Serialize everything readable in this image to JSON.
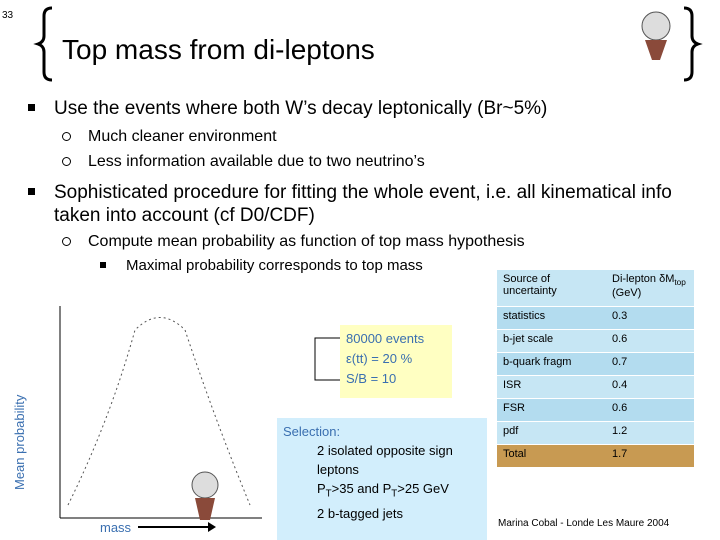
{
  "page_number": "33",
  "title": "Top mass from di-leptons",
  "bullets": [
    {
      "text": "Use the events where both W’s decay leptonically (Br~5%)",
      "sub": [
        "Much cleaner environment",
        "Less information available due to two neutrino’s"
      ]
    },
    {
      "text": "Sophisticated procedure for fitting the whole event, i.e. all kinematical info taken into account (cf D0/CDF)",
      "sub": [
        "Compute mean probability as function of top mass hypothesis"
      ],
      "subsub": [
        "Maximal probability corresponds to top mass"
      ]
    }
  ],
  "plot": {
    "y_label": "Mean probability",
    "x_label": "mass"
  },
  "info": [
    "80000 events",
    "ε(tt) = 20 %",
    "S/B = 10"
  ],
  "selection": {
    "title": "Selection:",
    "lines": [
      [
        {
          "t": "2 isolated opposite sign leptons"
        }
      ],
      [
        {
          "t": "P"
        },
        {
          "t": "T",
          "sub": true
        },
        {
          "t": ">35 and P"
        },
        {
          "t": "T",
          "sub": true
        },
        {
          "t": ">25 GeV"
        }
      ],
      [
        {
          "t": "2 b-tagged jets"
        }
      ]
    ]
  },
  "table": {
    "header": [
      [
        {
          "t": "Source of uncertainty"
        }
      ],
      [
        {
          "t": "Di-lepton δM"
        },
        {
          "t": "top",
          "sub": true
        },
        {
          "t": " (GeV)"
        }
      ]
    ],
    "rows": [
      [
        "statistics",
        "0.3"
      ],
      [
        "b-jet scale",
        "0.6"
      ],
      [
        "b-quark fragm",
        "0.7"
      ],
      [
        "ISR",
        "0.4"
      ],
      [
        "FSR",
        "0.6"
      ],
      [
        "pdf",
        "1.2"
      ]
    ],
    "total": [
      "Total",
      "1.7"
    ]
  },
  "footer": "Marina Cobal - Londe Les Maure 2004"
}
